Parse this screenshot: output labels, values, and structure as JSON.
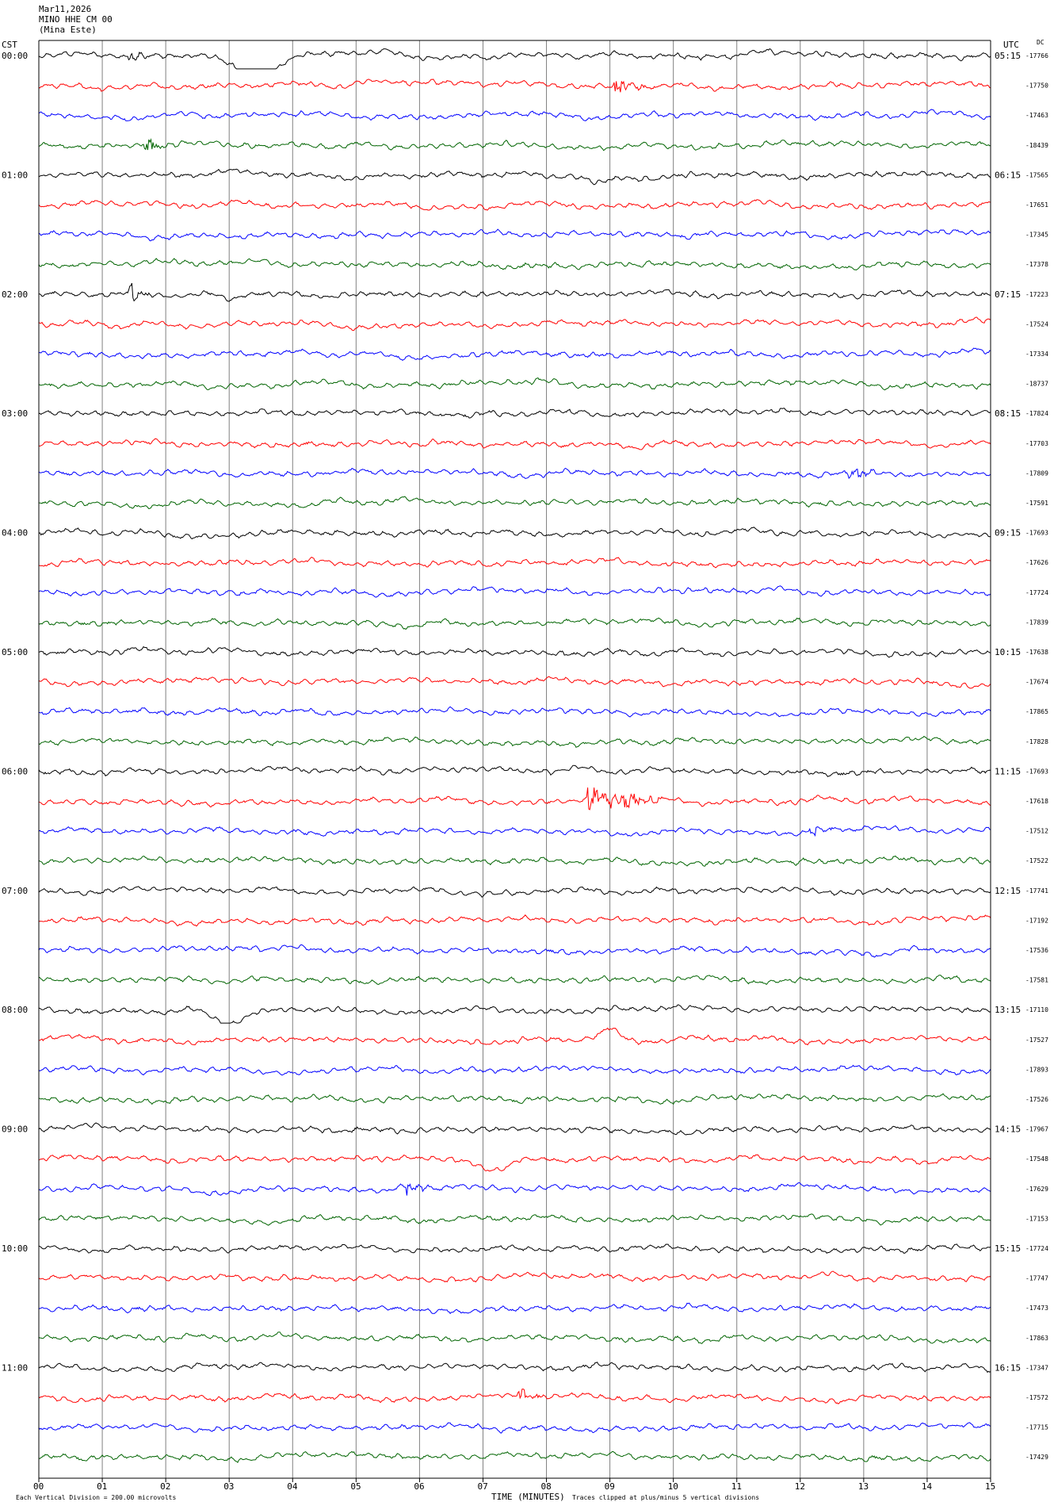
{
  "header": {
    "date": "Mar11,2026",
    "station": "MINO HHE CM 00",
    "location": "(Mina Este)"
  },
  "left_axis_title": "CST",
  "right_axis_title": "UTC",
  "dc_title": "DC",
  "footer": {
    "left_note": "Each Vertical Division =  200.00 microvolts",
    "xlabel": "TIME (MINUTES)",
    "right_note": "Traces clipped at plus/minus 5 vertical divisions"
  },
  "colors": {
    "trace_cycle": [
      "#000000",
      "#ff0000",
      "#0000ff",
      "#006400"
    ],
    "gridline": "#808080"
  },
  "chart_data": {
    "type": "line",
    "subtype": "helicorder",
    "xlabel": "TIME (MINUTES)",
    "xlim": [
      0,
      15
    ],
    "x_tick_labels": [
      "00",
      "01",
      "02",
      "03",
      "04",
      "05",
      "06",
      "07",
      "08",
      "09",
      "10",
      "11",
      "12",
      "13",
      "14",
      "15"
    ],
    "rows_per_hour": 4,
    "minutes_per_row": 15,
    "row_count": 48,
    "grid": "vertical, every 1 minute",
    "left_hour_labels": [
      "00:00",
      "01:00",
      "02:00",
      "03:00",
      "04:00",
      "05:00",
      "06:00",
      "07:00",
      "08:00",
      "09:00",
      "10:00",
      "11:00"
    ],
    "right_hour_labels": [
      "05:15",
      "06:15",
      "07:15",
      "08:15",
      "09:15",
      "10:15",
      "11:15",
      "12:15",
      "13:15",
      "14:15",
      "15:15",
      "16:15"
    ],
    "dc_offsets": [
      "-17766",
      "-17750",
      "-17463",
      "-18439",
      "-17565",
      "-17651",
      "-17345",
      "-17378",
      "-17223",
      "-17524",
      "-17334",
      "-18737",
      "-17824",
      "-17703",
      "-17809",
      "-17591",
      "-17693",
      "-17626",
      "-17724",
      "-17839",
      "-17638",
      "-17674",
      "-17865",
      "-17828",
      "-17693",
      "-17618",
      "-17512",
      "-17522",
      "-17741",
      "-17192",
      "-17536",
      "-17581",
      "-17110",
      "-17527",
      "-17893",
      "-17526",
      "-17967",
      "-17548",
      "-17629",
      "-17153",
      "-17724",
      "-17747",
      "-17473",
      "-17863",
      "-17347",
      "-17572",
      "-17715",
      "-17429"
    ],
    "events": [
      {
        "row": 0,
        "minute": 1.45,
        "amp": 0.35,
        "dur": 0.25
      },
      {
        "row": 0,
        "minute": 3.45,
        "amp": -2.0,
        "dur": 0.9,
        "kind": "swing"
      },
      {
        "row": 1,
        "minute": 9.1,
        "amp": 0.55,
        "dur": 0.5
      },
      {
        "row": 3,
        "minute": 1.7,
        "amp": 0.45,
        "dur": 0.35
      },
      {
        "row": 4,
        "minute": 8.8,
        "amp": -0.6,
        "dur": 0.5,
        "kind": "swing"
      },
      {
        "row": 8,
        "minute": 1.45,
        "amp": 0.55,
        "dur": 0.3
      },
      {
        "row": 8,
        "minute": 3.0,
        "amp": -0.5,
        "dur": 0.5,
        "kind": "swing"
      },
      {
        "row": 14,
        "minute": 12.8,
        "amp": 0.35,
        "dur": 0.4
      },
      {
        "row": 25,
        "minute": 8.7,
        "amp": 0.75,
        "dur": 1.1
      },
      {
        "row": 26,
        "minute": 12.2,
        "amp": 0.4,
        "dur": 0.3
      },
      {
        "row": 32,
        "minute": 3.0,
        "amp": -1.0,
        "dur": 0.8,
        "kind": "swing"
      },
      {
        "row": 33,
        "minute": 9.0,
        "amp": 0.8,
        "dur": 0.6,
        "kind": "swing"
      },
      {
        "row": 37,
        "minute": 7.2,
        "amp": -1.0,
        "dur": 0.8,
        "kind": "swing"
      },
      {
        "row": 38,
        "minute": 5.85,
        "amp": 0.45,
        "dur": 0.3
      },
      {
        "row": 45,
        "minute": 7.6,
        "amp": 0.4,
        "dur": 0.3
      }
    ]
  }
}
